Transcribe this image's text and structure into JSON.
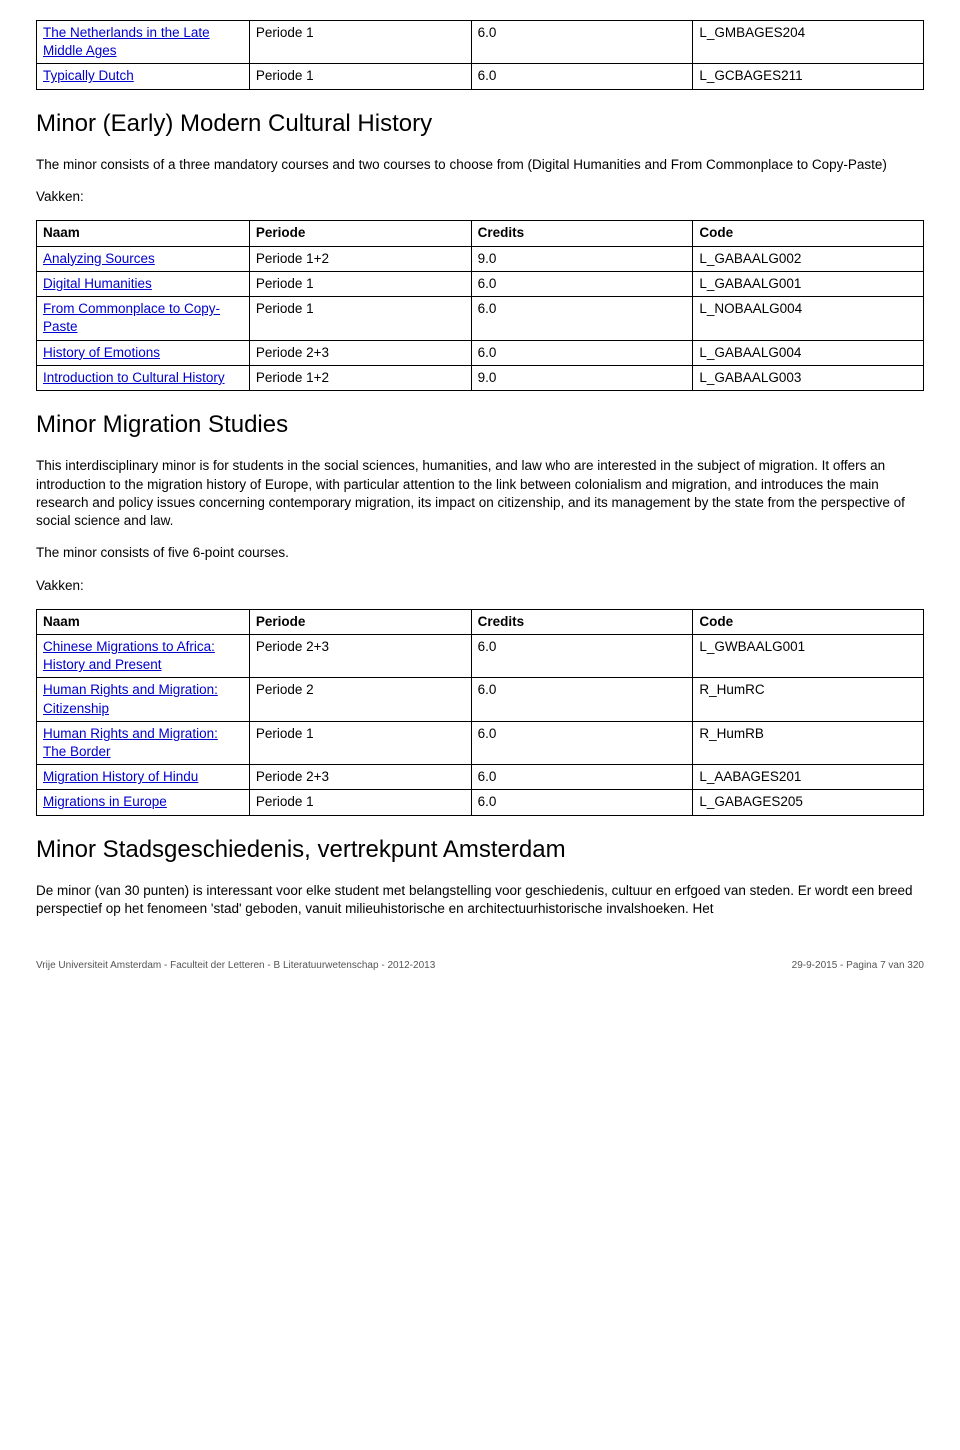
{
  "table1": {
    "rows": [
      {
        "name": "The Netherlands in the Late Middle Ages",
        "period": "Periode 1",
        "credits": "6.0",
        "code": "L_GMBAGES204"
      },
      {
        "name": "Typically Dutch",
        "period": "Periode 1",
        "credits": "6.0",
        "code": "L_GCBAGES211"
      }
    ]
  },
  "section1": {
    "title": "Minor (Early) Modern Cultural History",
    "desc": "The minor consists of a three mandatory courses and two courses to choose from (Digital Humanities and From Commonplace to Copy-Paste)",
    "vakken": "Vakken:"
  },
  "table_headers": {
    "name": "Naam",
    "period": "Periode",
    "credits": "Credits",
    "code": "Code"
  },
  "table2": {
    "rows": [
      {
        "name": "Analyzing Sources",
        "period": "Periode 1+2",
        "credits": "9.0",
        "code": "L_GABAALG002"
      },
      {
        "name": "Digital Humanities",
        "period": "Periode 1",
        "credits": "6.0",
        "code": "L_GABAALG001"
      },
      {
        "name": "From Commonplace to Copy-Paste",
        "period": "Periode 1",
        "credits": "6.0",
        "code": "L_NOBAALG004"
      },
      {
        "name": "History of Emotions",
        "period": "Periode 2+3",
        "credits": "6.0",
        "code": "L_GABAALG004"
      },
      {
        "name": "Introduction to Cultural History",
        "period": "Periode 1+2",
        "credits": "9.0",
        "code": "L_GABAALG003"
      }
    ]
  },
  "section2": {
    "title": "Minor Migration Studies",
    "desc": "This interdisciplinary minor is for students in the social sciences, humanities, and law who are interested in the subject of migration. It offers an introduction to the migration history of Europe, with particular attention to the link between colonialism and migration, and introduces the main research and policy issues concerning contemporary migration, its impact on citizenship, and its management by the state from the perspective of social science and law.",
    "desc2": "The minor consists of five 6-point courses.",
    "vakken": "Vakken:"
  },
  "table3": {
    "rows": [
      {
        "name": "Chinese Migrations to Africa: History and Present",
        "period": "Periode 2+3",
        "credits": "6.0",
        "code": "L_GWBAALG001"
      },
      {
        "name": "Human Rights and Migration: Citizenship",
        "period": "Periode 2",
        "credits": "6.0",
        "code": "R_HumRC"
      },
      {
        "name": "Human Rights and Migration: The Border",
        "period": "Periode 1",
        "credits": "6.0",
        "code": "R_HumRB"
      },
      {
        "name": "Migration History of Hindu",
        "period": "Periode 2+3",
        "credits": "6.0",
        "code": "L_AABAGES201"
      },
      {
        "name": "Migrations in Europe",
        "period": "Periode 1",
        "credits": "6.0",
        "code": "L_GABAGES205"
      }
    ]
  },
  "section3": {
    "title": "Minor Stadsgeschiedenis, vertrekpunt Amsterdam",
    "desc": "De minor (van 30 punten) is interessant voor elke student met belangstelling voor geschiedenis, cultuur en erfgoed van steden. Er wordt een breed perspectief op het fenomeen 'stad' geboden, vanuit milieuhistorische en architectuurhistorische invalshoeken. Het"
  },
  "footer": {
    "left": "Vrije Universiteit Amsterdam - Faculteit der Letteren - B Literatuurwetenschap - 2012-2013",
    "right": "29-9-2015 - Pagina 7 van 320"
  }
}
